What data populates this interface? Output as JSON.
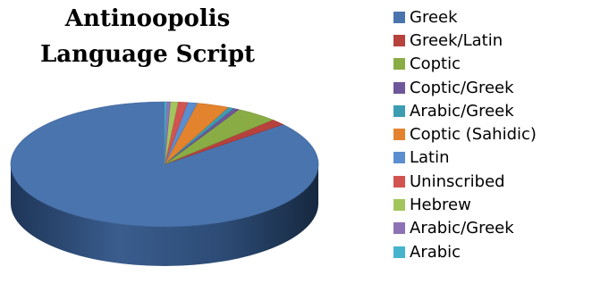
{
  "chart_data": {
    "type": "pie",
    "style": "3d",
    "title": [
      "Antinoopolis",
      "Language Script"
    ],
    "legend_position": "right",
    "series": [
      {
        "name": "Greek",
        "value": 86.0,
        "color": "#4a74ae"
      },
      {
        "name": "Greek/Latin",
        "value": 1.6,
        "color": "#b7413d"
      },
      {
        "name": "Coptic",
        "value": 4.4,
        "color": "#8aac45"
      },
      {
        "name": "Coptic/Greek",
        "value": 0.6,
        "color": "#6e579a"
      },
      {
        "name": "Arabic/Greek",
        "value": 0.6,
        "color": "#3c9db2"
      },
      {
        "name": "Coptic (Sahidic)",
        "value": 3.4,
        "color": "#e3832e"
      },
      {
        "name": "Latin",
        "value": 1.0,
        "color": "#5b8ed0"
      },
      {
        "name": "Uninscribed",
        "value": 1.0,
        "color": "#d25350"
      },
      {
        "name": "Hebrew",
        "value": 0.8,
        "color": "#a3c55d"
      },
      {
        "name": "Arabic/Greek",
        "value": 0.4,
        "color": "#8d72b6"
      },
      {
        "name": "Arabic",
        "value": 0.2,
        "color": "#45b4cc"
      }
    ]
  }
}
